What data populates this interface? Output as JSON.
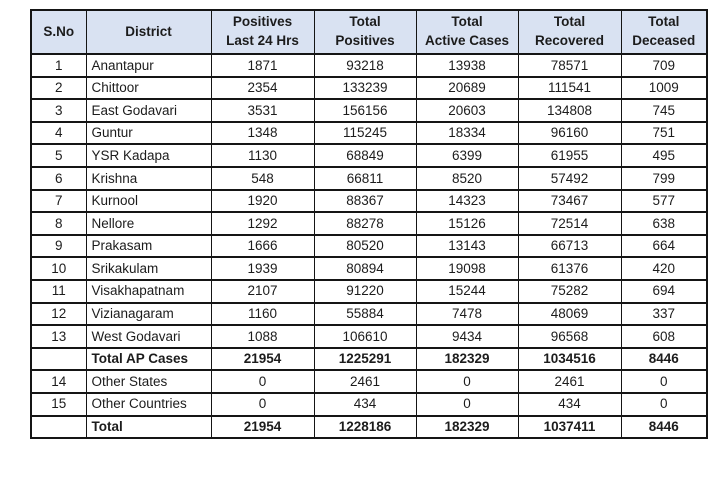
{
  "colors": {
    "header_bg": "#d9e2f2",
    "border": "#151515",
    "text": "#1c1c1c",
    "page_bg": "#ffffff"
  },
  "chart_data": {
    "type": "table",
    "columns": [
      {
        "key": "sno",
        "label": "S.No"
      },
      {
        "key": "district",
        "label": "District"
      },
      {
        "key": "positives_24h",
        "label": "Positives\nLast 24 Hrs"
      },
      {
        "key": "total_positives",
        "label": "Total\nPositives"
      },
      {
        "key": "total_active",
        "label": "Total\nActive Cases"
      },
      {
        "key": "total_recovered",
        "label": "Total\nRecovered"
      },
      {
        "key": "total_deceased",
        "label": "Total\nDeceased"
      }
    ],
    "rows": [
      {
        "sno": "1",
        "district": "Anantapur",
        "values": [
          "1871",
          "93218",
          "13938",
          "78571",
          "709"
        ],
        "bold": false
      },
      {
        "sno": "2",
        "district": "Chittoor",
        "values": [
          "2354",
          "133239",
          "20689",
          "111541",
          "1009"
        ],
        "bold": false
      },
      {
        "sno": "3",
        "district": "East Godavari",
        "values": [
          "3531",
          "156156",
          "20603",
          "134808",
          "745"
        ],
        "bold": false
      },
      {
        "sno": "4",
        "district": "Guntur",
        "values": [
          "1348",
          "115245",
          "18334",
          "96160",
          "751"
        ],
        "bold": false
      },
      {
        "sno": "5",
        "district": "YSR Kadapa",
        "values": [
          "1130",
          "68849",
          "6399",
          "61955",
          "495"
        ],
        "bold": false
      },
      {
        "sno": "6",
        "district": "Krishna",
        "values": [
          "548",
          "66811",
          "8520",
          "57492",
          "799"
        ],
        "bold": false
      },
      {
        "sno": "7",
        "district": "Kurnool",
        "values": [
          "1920",
          "88367",
          "14323",
          "73467",
          "577"
        ],
        "bold": false
      },
      {
        "sno": "8",
        "district": "Nellore",
        "values": [
          "1292",
          "88278",
          "15126",
          "72514",
          "638"
        ],
        "bold": false
      },
      {
        "sno": "9",
        "district": "Prakasam",
        "values": [
          "1666",
          "80520",
          "13143",
          "66713",
          "664"
        ],
        "bold": false
      },
      {
        "sno": "10",
        "district": "Srikakulam",
        "values": [
          "1939",
          "80894",
          "19098",
          "61376",
          "420"
        ],
        "bold": false
      },
      {
        "sno": "11",
        "district": "Visakhapatnam",
        "values": [
          "2107",
          "91220",
          "15244",
          "75282",
          "694"
        ],
        "bold": false
      },
      {
        "sno": "12",
        "district": "Vizianagaram",
        "values": [
          "1160",
          "55884",
          "7478",
          "48069",
          "337"
        ],
        "bold": false
      },
      {
        "sno": "13",
        "district": "West Godavari",
        "values": [
          "1088",
          "106610",
          "9434",
          "96568",
          "608"
        ],
        "bold": false
      },
      {
        "sno": "",
        "district": "Total AP Cases",
        "values": [
          "21954",
          "1225291",
          "182329",
          "1034516",
          "8446"
        ],
        "bold": true
      },
      {
        "sno": "14",
        "district": "Other States",
        "values": [
          "0",
          "2461",
          "0",
          "2461",
          "0"
        ],
        "bold": false
      },
      {
        "sno": "15",
        "district": "Other Countries",
        "values": [
          "0",
          "434",
          "0",
          "434",
          "0"
        ],
        "bold": false
      },
      {
        "sno": "",
        "district": "Total",
        "values": [
          "21954",
          "1228186",
          "182329",
          "1037411",
          "8446"
        ],
        "bold": true
      }
    ]
  }
}
